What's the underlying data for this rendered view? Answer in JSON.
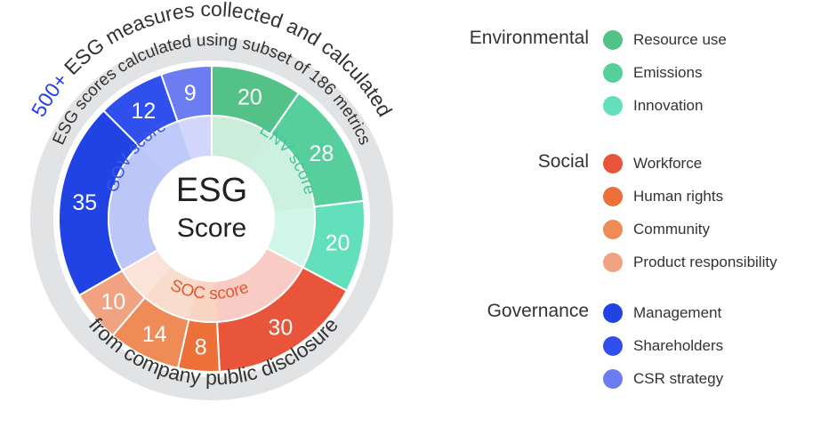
{
  "center": {
    "line1": "ESG",
    "line2": "Score"
  },
  "outer_ring": {
    "accent": "500+",
    "top_text": " ESG measures collected and calculated",
    "bottom_text": "from company public disclosure"
  },
  "middle_ring_text": "ESG scores calculated using subset of 186 metrics",
  "pillars": [
    {
      "key": "env",
      "label": "ENV score",
      "color": "#4ed3a2"
    },
    {
      "key": "soc",
      "label": "SOC score",
      "color": "#ee5a2f"
    },
    {
      "key": "gov",
      "label": "GOV score",
      "color": "#2f50e6"
    }
  ],
  "segments": [
    {
      "pillar": "env",
      "category": "Resource use",
      "value": 20,
      "color": "#54c286"
    },
    {
      "pillar": "env",
      "category": "Emissions",
      "value": 28,
      "color": "#56cf9d"
    },
    {
      "pillar": "env",
      "category": "Innovation",
      "value": 20,
      "color": "#62e0bb"
    },
    {
      "pillar": "soc",
      "category": "Workforce",
      "value": 30,
      "color": "#e9553a"
    },
    {
      "pillar": "soc",
      "category": "Human rights",
      "value": 8,
      "color": "#ec7038"
    },
    {
      "pillar": "soc",
      "category": "Community",
      "value": 14,
      "color": "#ef8b57"
    },
    {
      "pillar": "soc",
      "category": "Product responsibility",
      "value": 10,
      "color": "#f1a381"
    },
    {
      "pillar": "gov",
      "category": "Management",
      "value": 35,
      "color": "#2143e3"
    },
    {
      "pillar": "gov",
      "category": "Shareholders",
      "value": 12,
      "color": "#3050ee"
    },
    {
      "pillar": "gov",
      "category": "CSR strategy",
      "value": 9,
      "color": "#6c7cf1"
    }
  ],
  "legend": [
    {
      "group": "Environmental",
      "items": [
        {
          "label": "Resource use",
          "color": "#54c286"
        },
        {
          "label": "Emissions",
          "color": "#56cf9d"
        },
        {
          "label": "Innovation",
          "color": "#62e0bb"
        }
      ]
    },
    {
      "group": "Social",
      "items": [
        {
          "label": "Workforce",
          "color": "#e9553a"
        },
        {
          "label": "Human rights",
          "color": "#ec7038"
        },
        {
          "label": "Community",
          "color": "#ef8b57"
        },
        {
          "label": "Product responsibility",
          "color": "#f1a381"
        }
      ]
    },
    {
      "group": "Governance",
      "items": [
        {
          "label": "Management",
          "color": "#2143e3"
        },
        {
          "label": "Shareholders",
          "color": "#3050ee"
        },
        {
          "label": "CSR strategy",
          "color": "#6c7cf1"
        }
      ]
    }
  ]
}
